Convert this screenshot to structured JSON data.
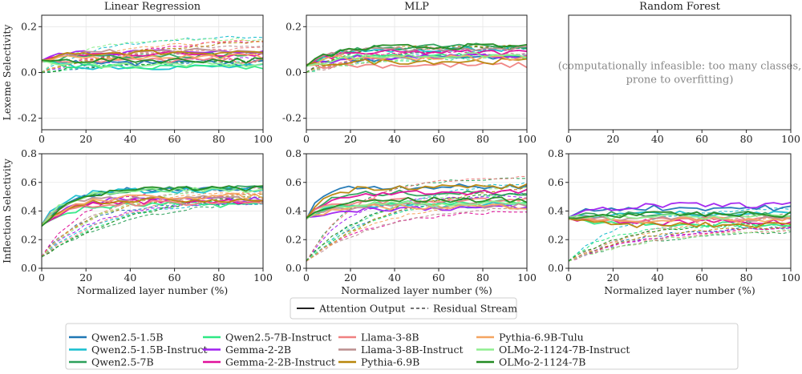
{
  "figure": {
    "column_titles": [
      "Linear Regression",
      "MLP",
      "Random Forest"
    ],
    "row_labels": [
      "Lexeme Selectivity",
      "Inflection Selectivity"
    ],
    "xlabel": "Normalized layer number (%)",
    "infeasible_note": [
      "(computationally infeasible: too many classes,",
      "prone to overfitting)"
    ],
    "style_legend": [
      {
        "label": "Attention Output",
        "dash": "solid"
      },
      {
        "label": "Residual Stream",
        "dash": "dashed"
      }
    ]
  },
  "chart_data": [
    {
      "type": "line",
      "panel": "Linear Regression / Lexeme Selectivity",
      "title": "Linear Regression",
      "xlabel": "",
      "ylabel": "Lexeme Selectivity",
      "xlim": [
        0,
        100
      ],
      "ylim": [
        -0.25,
        0.25
      ],
      "xticks": [
        0,
        20,
        40,
        60,
        80,
        100
      ],
      "yticks": [
        -0.2,
        0.0,
        0.2
      ],
      "attention_band": [
        0.02,
        0.1
      ],
      "residual_band": [
        0.05,
        0.17
      ],
      "start": [
        0.05,
        0.0
      ],
      "grid": true
    },
    {
      "type": "line",
      "panel": "MLP / Lexeme Selectivity",
      "title": "MLP",
      "xlabel": "",
      "ylabel": "",
      "xlim": [
        0,
        100
      ],
      "ylim": [
        -0.25,
        0.25
      ],
      "xticks": [
        0,
        20,
        40,
        60,
        80,
        100
      ],
      "yticks": [
        -0.2,
        0.0,
        0.2
      ],
      "attention_band": [
        0.03,
        0.12
      ],
      "residual_band": [
        0.06,
        0.12
      ],
      "start": [
        0.03,
        0.0
      ],
      "grid": true
    },
    {
      "type": "line",
      "panel": "Random Forest / Lexeme Selectivity",
      "title": "Random Forest",
      "xlabel": "",
      "ylabel": "",
      "xlim": [
        0,
        100
      ],
      "ylim": [
        -0.25,
        0.25
      ],
      "xticks": [
        0,
        20,
        40,
        60,
        80,
        100
      ],
      "yticks": [],
      "empty": true,
      "grid": false
    },
    {
      "type": "line",
      "panel": "Linear Regression / Inflection Selectivity",
      "title": "",
      "xlabel": "Normalized layer number (%)",
      "ylabel": "Inflection Selectivity",
      "xlim": [
        0,
        100
      ],
      "ylim": [
        0.0,
        0.8
      ],
      "xticks": [
        0,
        20,
        40,
        60,
        80,
        100
      ],
      "yticks": [
        0.0,
        0.2,
        0.4,
        0.6,
        0.8
      ],
      "attention_band": [
        0.44,
        0.58
      ],
      "residual_band": [
        0.42,
        0.6
      ],
      "start": [
        0.3,
        0.08
      ],
      "grid": true
    },
    {
      "type": "line",
      "panel": "MLP / Inflection Selectivity",
      "title": "",
      "xlabel": "Normalized layer number (%)",
      "ylabel": "",
      "xlim": [
        0,
        100
      ],
      "ylim": [
        0.0,
        0.8
      ],
      "xticks": [
        0,
        20,
        40,
        60,
        80,
        100
      ],
      "yticks": [
        0.0,
        0.2,
        0.4,
        0.6,
        0.8
      ],
      "attention_band": [
        0.42,
        0.58
      ],
      "residual_band": [
        0.4,
        0.64
      ],
      "start": [
        0.35,
        0.05
      ],
      "grid": true
    },
    {
      "type": "line",
      "panel": "Random Forest / Inflection Selectivity",
      "title": "",
      "xlabel": "Normalized layer number (%)",
      "ylabel": "",
      "xlim": [
        0,
        100
      ],
      "ylim": [
        0.0,
        0.8
      ],
      "xticks": [
        0,
        20,
        40,
        60,
        80,
        100
      ],
      "yticks": [
        0.0,
        0.2,
        0.4,
        0.6,
        0.8
      ],
      "attention_band": [
        0.3,
        0.45
      ],
      "residual_band": [
        0.25,
        0.42
      ],
      "start": [
        0.35,
        0.05
      ],
      "grid": true
    }
  ],
  "series": [
    {
      "name": "Qwen2.5-1.5B",
      "color": "#1f77b4"
    },
    {
      "name": "Qwen2.5-1.5B-Instruct",
      "color": "#17becf"
    },
    {
      "name": "Qwen2.5-7B",
      "color": "#2ca05a"
    },
    {
      "name": "Qwen2.5-7B-Instruct",
      "color": "#2ee884"
    },
    {
      "name": "Gemma-2-2B",
      "color": "#a020f0"
    },
    {
      "name": "Gemma-2-2B-Instruct",
      "color": "#e0109a"
    },
    {
      "name": "Llama-3-8B",
      "color": "#f08080"
    },
    {
      "name": "Llama-3-8B-Instruct",
      "color": "#bc8f8f"
    },
    {
      "name": "Pythia-6.9B",
      "color": "#b8860b"
    },
    {
      "name": "Pythia-6.9B-Tulu",
      "color": "#f4a460"
    },
    {
      "name": "OLMo-2-1124-7B-Instruct",
      "color": "#90ee90"
    },
    {
      "name": "OLMo-2-1124-7B",
      "color": "#228b22"
    }
  ]
}
